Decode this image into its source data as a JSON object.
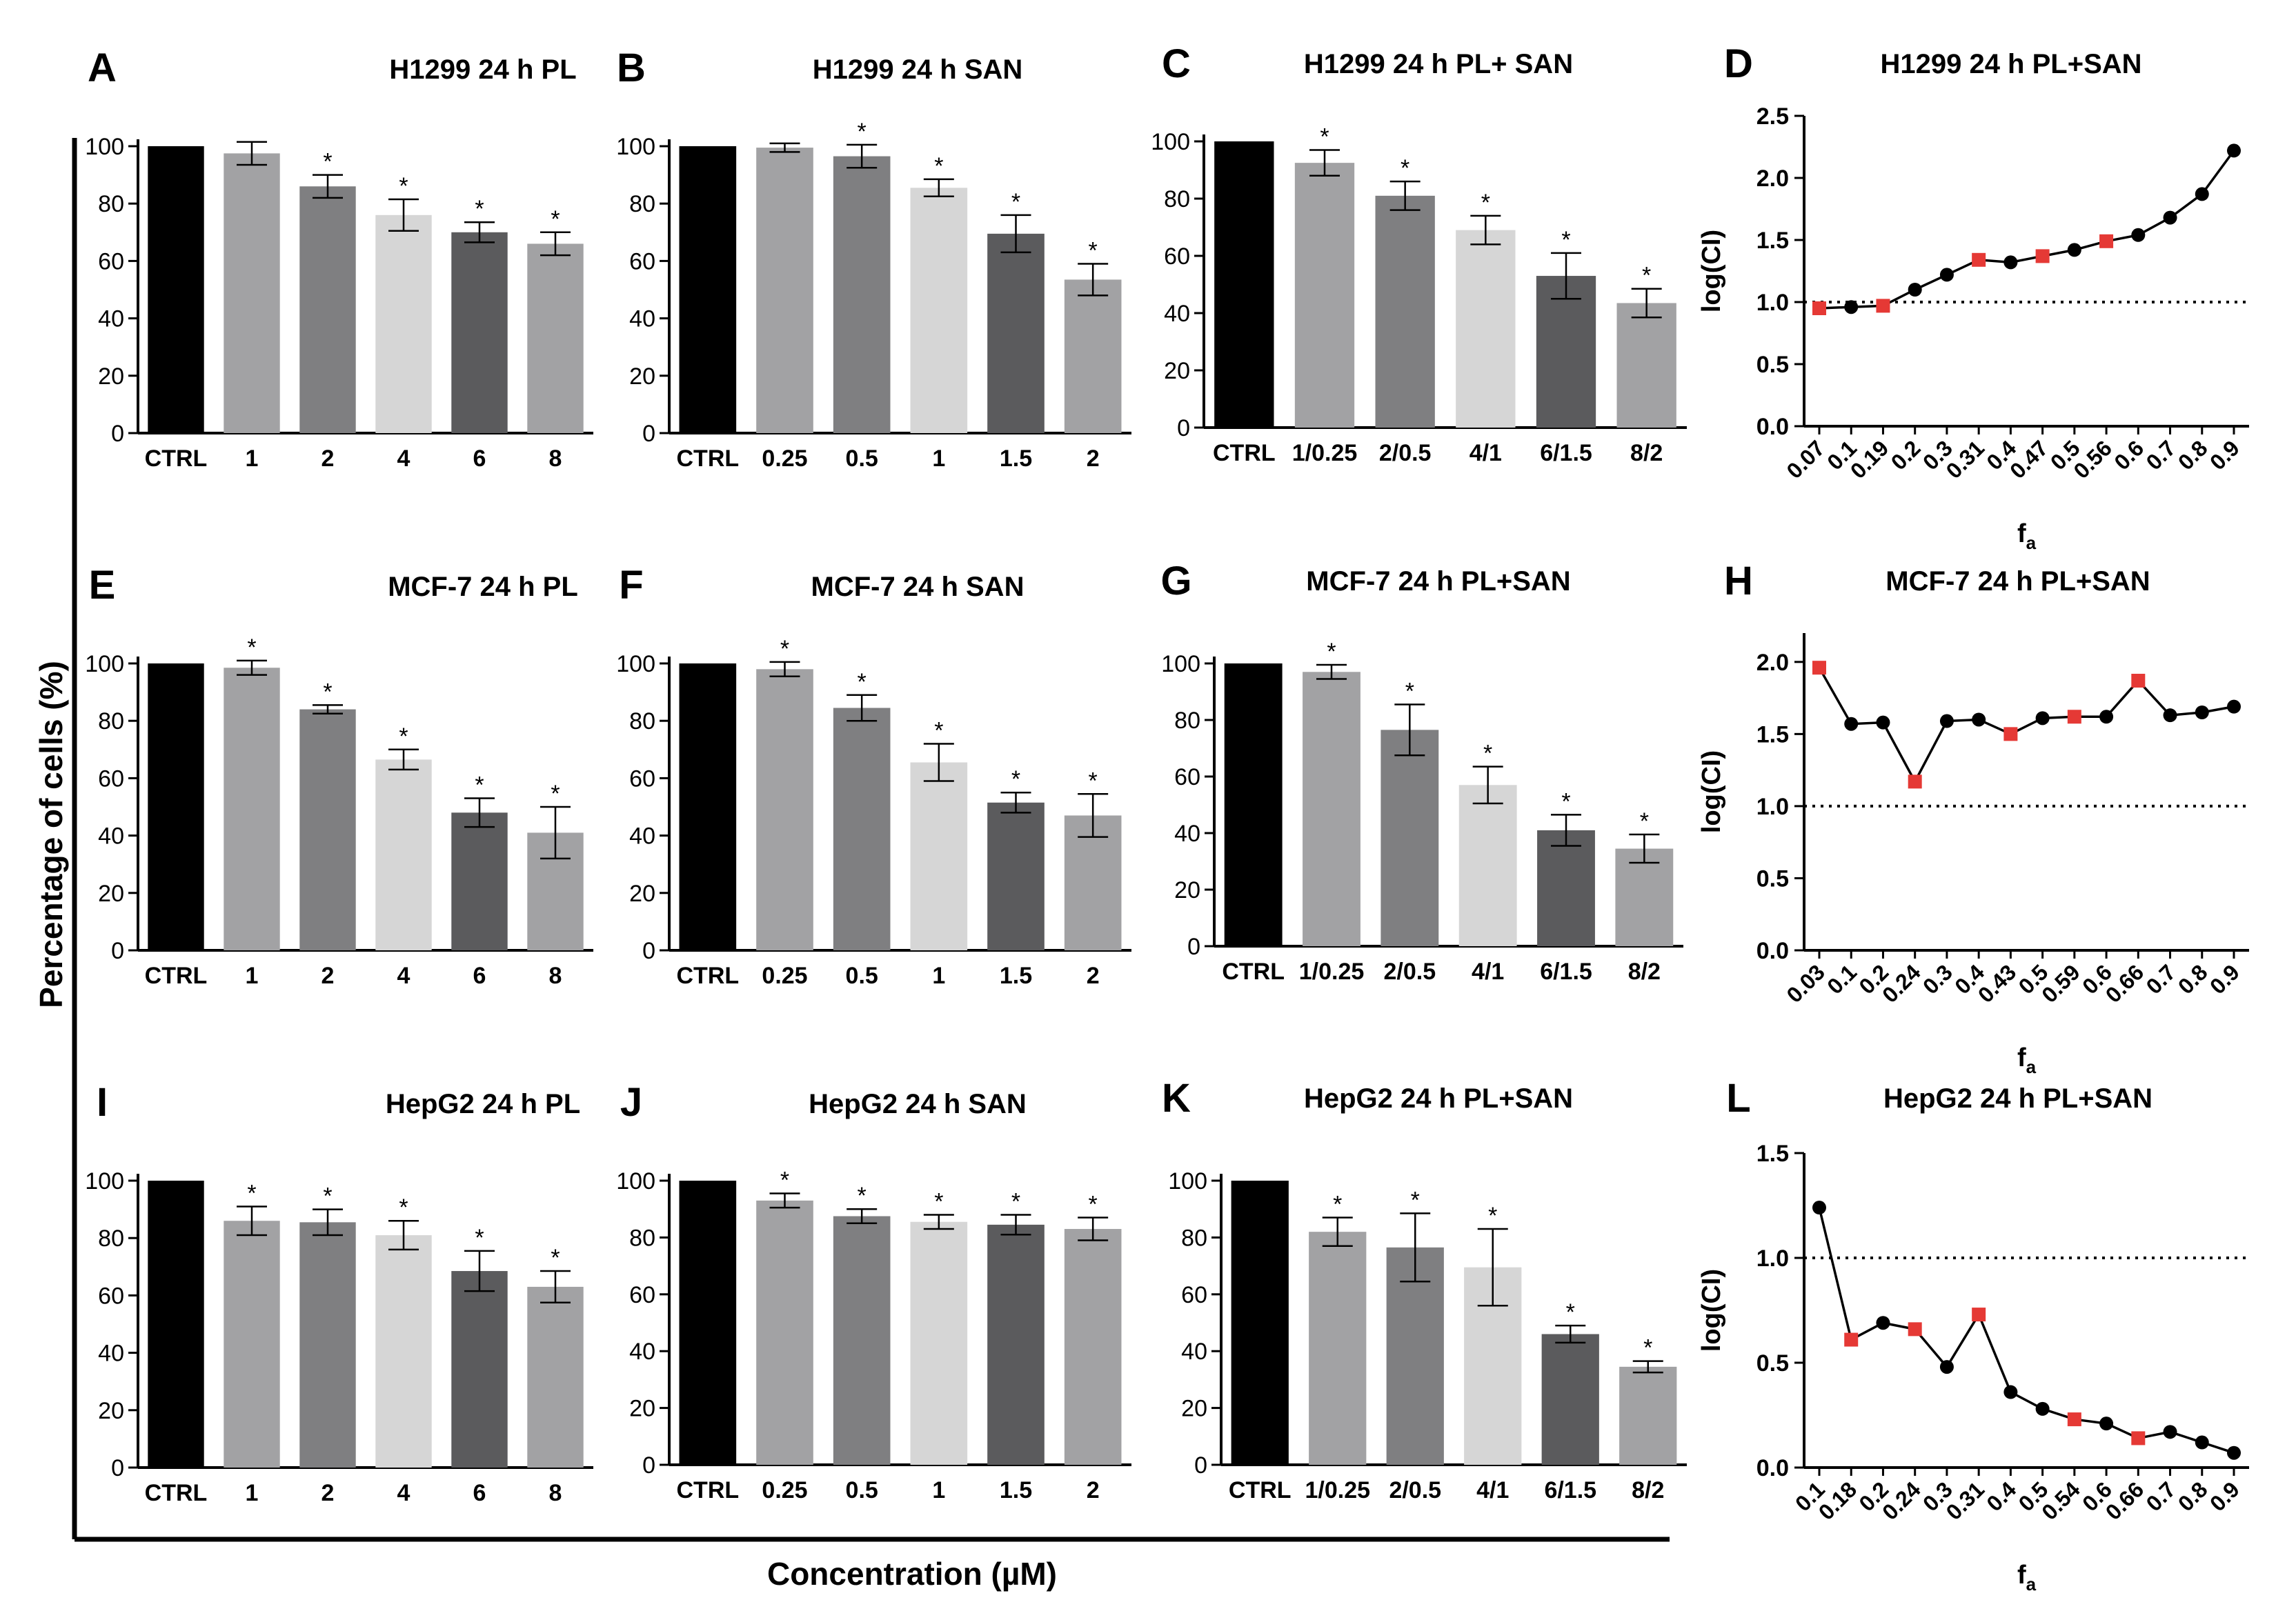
{
  "figure": {
    "ylabel": "Percentage of cells (%)",
    "xlabel": "Concentration (µM)"
  },
  "colors": {
    "ctrl": "#000000",
    "bar_1": "#a2a2a4",
    "bar_2": "#7f7f81",
    "bar_3": "#d6d6d6",
    "bar_4": "#5b5b5d",
    "bar_5": "#a2a2a4",
    "line_point": "#000000",
    "marker_highlight": "#e53935"
  },
  "chart_data": [
    {
      "id": "A",
      "type": "bar",
      "title": "H1299 24 h PL",
      "categories": [
        "CTRL",
        "1",
        "2",
        "4",
        "6",
        "8"
      ],
      "values": [
        100,
        97.5,
        86,
        76,
        70,
        66
      ],
      "errors": [
        0,
        4,
        4,
        5.5,
        3.5,
        4
      ],
      "significance": [
        "",
        "",
        "*",
        "*",
        "*",
        "*"
      ],
      "ylim": [
        0,
        100
      ],
      "yticks": [
        "0",
        "20",
        "40",
        "60",
        "80",
        "100"
      ]
    },
    {
      "id": "B",
      "type": "bar",
      "title": "H1299 24 h SAN",
      "categories": [
        "CTRL",
        "0.25",
        "0.5",
        "1",
        "1.5",
        "2"
      ],
      "values": [
        100,
        99.5,
        96.5,
        85.5,
        69.5,
        53.5
      ],
      "errors": [
        0,
        1.5,
        4,
        3,
        6.5,
        5.5
      ],
      "significance": [
        "",
        "",
        "*",
        "*",
        "*",
        "*"
      ],
      "ylim": [
        0,
        100
      ],
      "yticks": [
        "0",
        "20",
        "40",
        "60",
        "80",
        "100"
      ]
    },
    {
      "id": "C",
      "type": "bar",
      "title": "H1299 24 h PL+ SAN",
      "categories": [
        "CTRL",
        "1/0.25",
        "2/0.5",
        "4/1",
        "6/1.5",
        "8/2"
      ],
      "values": [
        100,
        92.5,
        81,
        69,
        53,
        43.5
      ],
      "errors": [
        0,
        4.5,
        5,
        5,
        8,
        5
      ],
      "significance": [
        "",
        "*",
        "*",
        "*",
        "*",
        "*"
      ],
      "ylim": [
        0,
        100
      ],
      "yticks": [
        "0",
        "20",
        "40",
        "60",
        "80",
        "100"
      ]
    },
    {
      "id": "D",
      "type": "line",
      "title": "H1299 24 h PL+SAN",
      "ylabel": "log(CI)",
      "xlabel_main": "f",
      "xlabel_sub": "a",
      "x": [
        "0.07",
        "0.1",
        "0.19",
        "0.2",
        "0.3",
        "0.31",
        "0.4",
        "0.47",
        "0.5",
        "0.56",
        "0.6",
        "0.7",
        "0.8",
        "0.9"
      ],
      "y": [
        0.95,
        0.96,
        0.97,
        1.1,
        1.22,
        1.34,
        1.32,
        1.37,
        1.42,
        1.49,
        1.54,
        1.68,
        1.87,
        2.22
      ],
      "highlight": [
        true,
        false,
        true,
        false,
        false,
        true,
        false,
        true,
        false,
        true,
        false,
        false,
        false,
        false
      ],
      "ylim": [
        0,
        2.5
      ],
      "yticks": [
        "0.0",
        "0.5",
        "1.0",
        "1.5",
        "2.0",
        "2.5"
      ],
      "reference_line": 1.0
    },
    {
      "id": "E",
      "type": "bar",
      "title": "MCF-7 24 h PL",
      "categories": [
        "CTRL",
        "1",
        "2",
        "4",
        "6",
        "8"
      ],
      "values": [
        100,
        98.5,
        84,
        66.5,
        48,
        41
      ],
      "errors": [
        0,
        2.5,
        1.5,
        3.5,
        5,
        9
      ],
      "significance": [
        "",
        "*",
        "*",
        "*",
        "*",
        "*"
      ],
      "ylim": [
        0,
        100
      ],
      "yticks": [
        "0",
        "20",
        "40",
        "60",
        "80",
        "100"
      ]
    },
    {
      "id": "F",
      "type": "bar",
      "title": "MCF-7 24 h SAN",
      "categories": [
        "CTRL",
        "0.25",
        "0.5",
        "1",
        "1.5",
        "2"
      ],
      "values": [
        100,
        98,
        84.5,
        65.5,
        51.5,
        47
      ],
      "errors": [
        0,
        2.5,
        4.5,
        6.5,
        3.5,
        7.5
      ],
      "significance": [
        "",
        "*",
        "*",
        "*",
        "*",
        "*"
      ],
      "ylim": [
        0,
        100
      ],
      "yticks": [
        "0",
        "20",
        "40",
        "60",
        "80",
        "100"
      ]
    },
    {
      "id": "G",
      "type": "bar",
      "title": "MCF-7 24 h PL+SAN",
      "categories": [
        "CTRL",
        "1/0.25",
        "2/0.5",
        "4/1",
        "6/1.5",
        "8/2"
      ],
      "values": [
        100,
        97,
        76.5,
        57,
        41,
        34.5
      ],
      "errors": [
        0,
        2.5,
        9,
        6.5,
        5.5,
        5
      ],
      "significance": [
        "",
        "*",
        "*",
        "*",
        "*",
        "*"
      ],
      "ylim": [
        0,
        100
      ],
      "yticks": [
        "0",
        "20",
        "40",
        "60",
        "80",
        "100"
      ]
    },
    {
      "id": "H",
      "type": "line",
      "title": "MCF-7 24 h PL+SAN",
      "ylabel": "log(CI)",
      "xlabel_main": "f",
      "xlabel_sub": "a",
      "x": [
        "0.03",
        "0.1",
        "0.2",
        "0.24",
        "0.3",
        "0.4",
        "0.43",
        "0.5",
        "0.59",
        "0.6",
        "0.66",
        "0.7",
        "0.8",
        "0.9"
      ],
      "y": [
        1.96,
        1.57,
        1.58,
        1.17,
        1.59,
        1.6,
        1.5,
        1.61,
        1.62,
        1.62,
        1.87,
        1.63,
        1.65,
        1.69
      ],
      "highlight": [
        true,
        false,
        false,
        true,
        false,
        false,
        true,
        false,
        true,
        false,
        true,
        false,
        false,
        false
      ],
      "ylim": [
        0,
        2.2
      ],
      "yticks": [
        "0.0",
        "0.5",
        "1.0",
        "1.5",
        "2.0"
      ],
      "reference_line": 1.0
    },
    {
      "id": "I",
      "type": "bar",
      "title": "HepG2 24 h PL",
      "categories": [
        "CTRL",
        "1",
        "2",
        "4",
        "6",
        "8"
      ],
      "values": [
        100,
        86,
        85.5,
        81,
        68.5,
        63
      ],
      "errors": [
        0,
        5,
        4.5,
        5,
        7,
        5.5
      ],
      "significance": [
        "",
        "*",
        "*",
        "*",
        "*",
        "*"
      ],
      "ylim": [
        0,
        100
      ],
      "yticks": [
        "0",
        "20",
        "40",
        "60",
        "80",
        "100"
      ]
    },
    {
      "id": "J",
      "type": "bar",
      "title": "HepG2 24 h SAN",
      "categories": [
        "CTRL",
        "0.25",
        "0.5",
        "1",
        "1.5",
        "2"
      ],
      "values": [
        100,
        93,
        87.5,
        85.5,
        84.5,
        83
      ],
      "errors": [
        0,
        2.5,
        2.5,
        2.5,
        3.5,
        4
      ],
      "significance": [
        "",
        "*",
        "*",
        "*",
        "*",
        "*"
      ],
      "ylim": [
        0,
        100
      ],
      "yticks": [
        "0",
        "20",
        "40",
        "60",
        "80",
        "100"
      ]
    },
    {
      "id": "K",
      "type": "bar",
      "title": "HepG2 24 h PL+SAN",
      "categories": [
        "CTRL",
        "1/0.25",
        "2/0.5",
        "4/1",
        "6/1.5",
        "8/2"
      ],
      "values": [
        100,
        82,
        76.5,
        69.5,
        46,
        34.5
      ],
      "errors": [
        0,
        5,
        12,
        13.5,
        3,
        2
      ],
      "significance": [
        "",
        "*",
        "*",
        "*",
        "*",
        "*"
      ],
      "ylim": [
        0,
        100
      ],
      "yticks": [
        "0",
        "20",
        "40",
        "60",
        "80",
        "100"
      ]
    },
    {
      "id": "L",
      "type": "line",
      "title": "HepG2 24 h PL+SAN",
      "ylabel": "log(CI)",
      "xlabel_main": "f",
      "xlabel_sub": "a",
      "x": [
        "0.1",
        "0.18",
        "0.2",
        "0.24",
        "0.3",
        "0.31",
        "0.4",
        "0.5",
        "0.54",
        "0.6",
        "0.66",
        "0.7",
        "0.8",
        "0.9"
      ],
      "y": [
        1.24,
        0.61,
        0.69,
        0.66,
        0.48,
        0.73,
        0.36,
        0.28,
        0.23,
        0.21,
        0.14,
        0.17,
        0.12,
        0.07
      ],
      "highlight": [
        false,
        true,
        false,
        true,
        false,
        true,
        false,
        false,
        true,
        false,
        true,
        false,
        false,
        false
      ],
      "ylim": [
        0,
        1.5
      ],
      "yticks": [
        "0.0",
        "0.5",
        "1.0",
        "1.5"
      ],
      "reference_line": 1.0
    }
  ]
}
